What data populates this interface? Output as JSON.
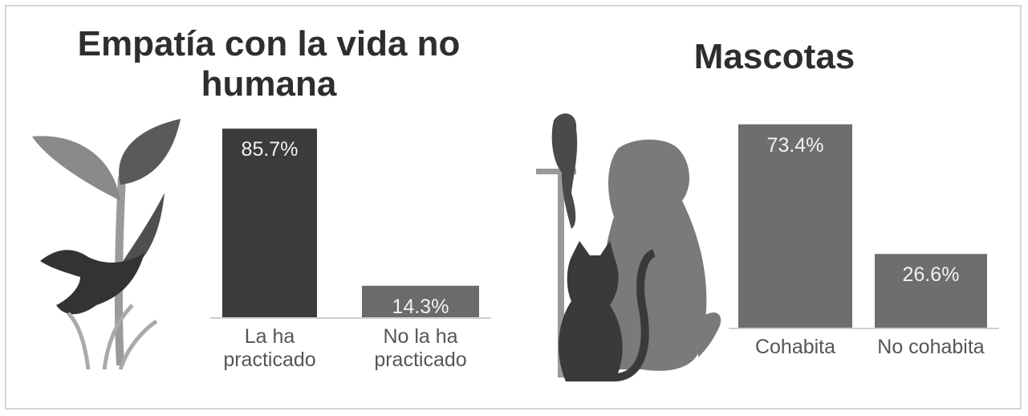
{
  "chart_data": [
    {
      "type": "bar",
      "title": "Empatía con la vida no humana",
      "categories": [
        "La ha practicado",
        "No la ha practicado"
      ],
      "values": [
        85.7,
        14.3
      ],
      "value_labels": [
        "85.7%",
        "14.3%"
      ],
      "colors": [
        "#3b3b3b",
        "#6b6b6b"
      ]
    },
    {
      "type": "bar",
      "title": "Mascotas",
      "categories": [
        "Cohabita",
        "No cohabita"
      ],
      "values": [
        73.4,
        26.6
      ],
      "value_labels": [
        "73.4%",
        "26.6%"
      ],
      "colors": [
        "#6e6e6e",
        "#6e6e6e"
      ]
    }
  ]
}
